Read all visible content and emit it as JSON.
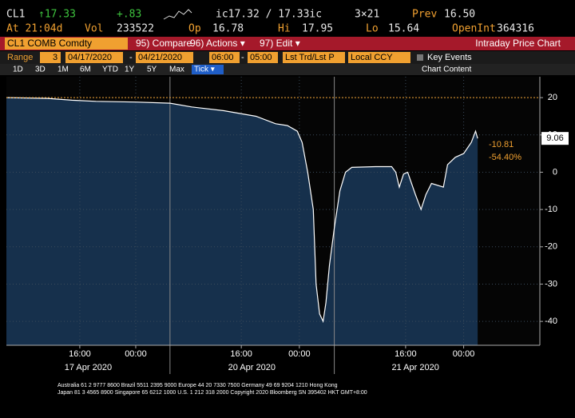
{
  "header": {
    "ticker": "CL1",
    "last": "↑17.33",
    "change": "+.83",
    "bid_ask": "ic17.32 / 17.33ic",
    "size": "3×21",
    "prev_label": "Prev",
    "prev": "16.50",
    "time": "At 21:04d",
    "vol_label": "Vol",
    "vol": "233522",
    "op_label": "Op",
    "op": "16.78",
    "hi_label": "Hi",
    "hi": "17.95",
    "lo_label": "Lo",
    "lo": "15.64",
    "oi_label": "OpenInt",
    "oi": "364316"
  },
  "toolbar": {
    "security": "CL1 COMB Comdty",
    "compare": "95) Compare",
    "actions": "96) Actions ▾",
    "edit": "97) Edit ▾",
    "title": "Intraday Price Chart"
  },
  "range_bar": {
    "range_label": "Range",
    "range": "3",
    "start_date": "04/17/2020",
    "dash": "-",
    "end_date": "04/21/2020",
    "start_time": "06:00",
    "end_time": "05:00",
    "price_type": "Lst Trd/Lst P",
    "currency": "Local CCY",
    "key_events": "Key Events"
  },
  "period_bar": {
    "periods": [
      "1D",
      "3D",
      "1M",
      "6M",
      "YTD",
      "1Y",
      "5Y",
      "Max"
    ],
    "tick": "Tick ▾",
    "chart_content": "Chart Content"
  },
  "chart_data": {
    "type": "line",
    "color": "#ffffff",
    "fill": "#16304c",
    "grid": true,
    "x": [
      0,
      5.9,
      9.4,
      12.8,
      18.5,
      23.4,
      26.5,
      31.1,
      35.7,
      38.5,
      40.2,
      41.6,
      42.3,
      43.1,
      43.9,
      44.3,
      44.8,
      45.3,
      45.7,
      46.2,
      46.9,
      47.7,
      48.5,
      49.4,
      52.8,
      55.1,
      55.7,
      56.2,
      56.8,
      57.4,
      58.5,
      59.3,
      60.0,
      60.8,
      62.5,
      63.1,
      64.2,
      65.4,
      66.5,
      67.1,
      67.4
    ],
    "values": [
      20,
      19.8,
      19.3,
      19.0,
      18.8,
      18.5,
      17.5,
      16.5,
      15,
      13,
      12.5,
      11,
      8,
      0,
      -10,
      -30,
      -38,
      -40,
      -35,
      -25,
      -15,
      -5,
      0,
      1.3,
      1.5,
      1.5,
      0,
      -4,
      -0.5,
      0,
      -6,
      -10,
      -6,
      -3,
      -4,
      2,
      4,
      5,
      8,
      11,
      9.06
    ],
    "xlim": [
      0,
      76.3
    ],
    "ylim": [
      -46.4,
      25.6
    ],
    "yticks": [
      20,
      10,
      0,
      -10,
      -20,
      -30,
      -40
    ],
    "xticks": [
      {
        "value": 10.5,
        "label": "16:00"
      },
      {
        "value": 18.5,
        "label": "00:00"
      },
      {
        "value": 33.6,
        "label": "16:00"
      },
      {
        "value": 41.9,
        "label": "00:00"
      },
      {
        "value": 57.1,
        "label": "16:00"
      },
      {
        "value": 65.4,
        "label": "00:00"
      }
    ],
    "date_labels": [
      {
        "value": 11.7,
        "label": "17 Apr 2020"
      },
      {
        "value": 35.1,
        "label": "20 Apr 2020"
      },
      {
        "value": 58.5,
        "label": "21 Apr 2020"
      }
    ],
    "session_breaks": [
      23.4,
      46.9
    ],
    "reference_line": 20,
    "reference_color": "#f0a030",
    "annotations": [
      "-10.81",
      "-54.40%"
    ]
  },
  "footer": [
    "Australia 61 2 9777 8600 Brazil 5511 2395 9000 Europe 44 20 7330 7500 Germany 49 69 9204 1210 Hong Kong",
    "Japan 81 3 4565 8900 Singapore 65 6212 1000 U.S. 1 212 318 2000 Copyright 2020 Bloomberg SN 395402 HKT GMT+8:00"
  ]
}
